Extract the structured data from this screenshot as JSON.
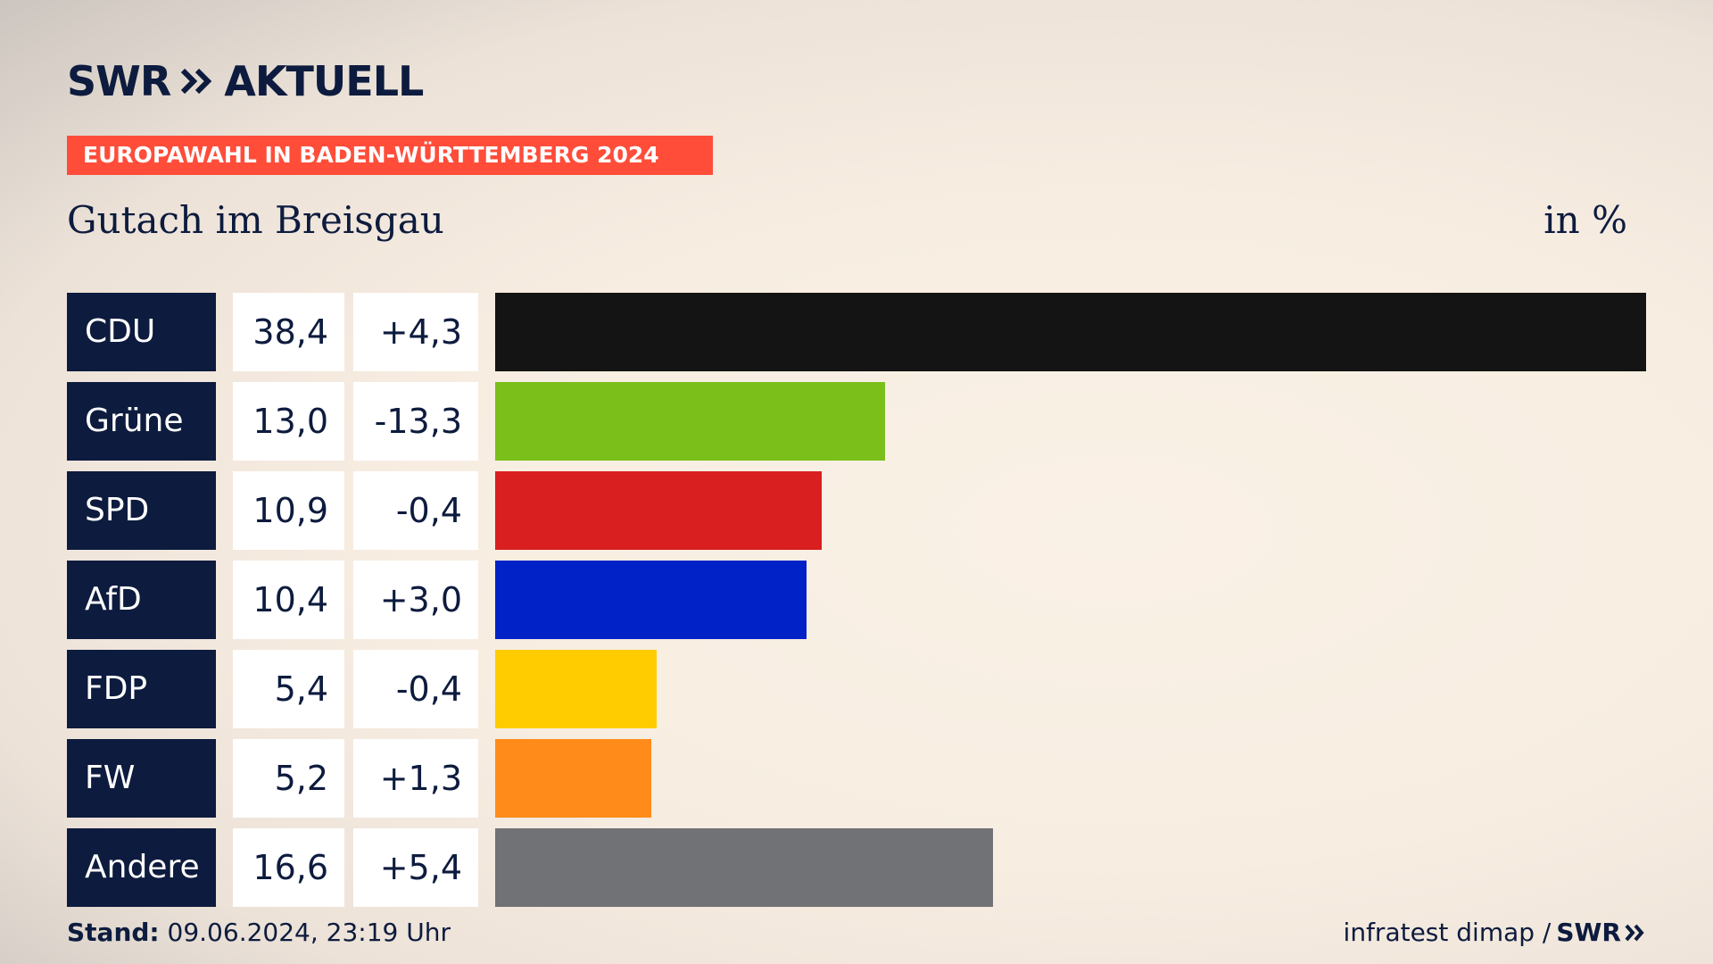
{
  "logo": {
    "text": "SWR",
    "suffix": "AKTUELL"
  },
  "banner": {
    "text": "EUROPAWAHL IN BADEN-WÜRTTEMBERG 2024"
  },
  "region": "Gutach im Breisgau",
  "unit": "in %",
  "footer": {
    "stand_label": "Stand:",
    "stand_value": "09.06.2024, 23:19 Uhr",
    "source": "infratest dimap /",
    "brand": "SWR"
  },
  "chart_data": {
    "type": "bar",
    "orientation": "horizontal",
    "categories": [
      "CDU",
      "Grüne",
      "SPD",
      "AfD",
      "FDP",
      "FW",
      "Andere"
    ],
    "values": [
      38.4,
      13.0,
      10.9,
      10.4,
      5.4,
      5.2,
      16.6
    ],
    "value_labels": [
      "38,4",
      "13,0",
      "10,9",
      "10,4",
      "5,4",
      "5,2",
      "16,6"
    ],
    "diff_labels": [
      "+4,3",
      "-13,3",
      "-0,4",
      "+3,0",
      "-0,4",
      "+1,3",
      "+5,4"
    ],
    "colors": [
      "#141414",
      "#7abf1a",
      "#d91f1f",
      "#0022c7",
      "#ffcc00",
      "#ff8c1a",
      "#717275"
    ],
    "xlim": [
      0,
      38.4
    ]
  }
}
